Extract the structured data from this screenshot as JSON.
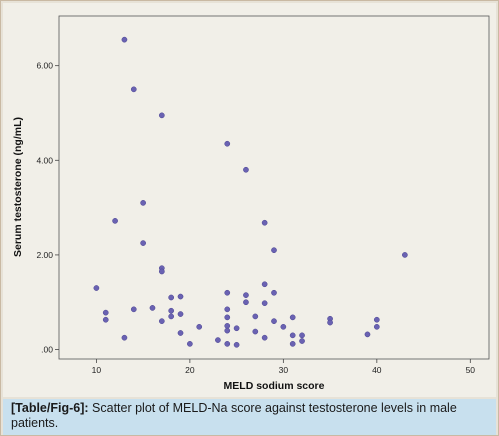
{
  "caption": {
    "tag": "[Table/Fig-6]:",
    "text": "Scatter plot of MELD-Na score against testosterone levels in male patients."
  },
  "chart_data": {
    "type": "scatter",
    "title": "",
    "xlabel": "MELD sodium score",
    "ylabel": "Serum testosterone (ng/mL)",
    "xlim": [
      6,
      52
    ],
    "ylim": [
      -0.2,
      7.05
    ],
    "xticks": [
      10,
      20,
      30,
      40,
      50
    ],
    "yticks": [
      0,
      2,
      4,
      6
    ],
    "xtick_labels": [
      "10",
      "20",
      "30",
      "40",
      "50"
    ],
    "ytick_labels": [
      ".00",
      "2.00",
      "4.00",
      "6.00"
    ],
    "grid": false,
    "point_color": "#6a62b2",
    "plot_background": "#f1efe8",
    "points": [
      [
        13,
        6.55
      ],
      [
        14,
        5.5
      ],
      [
        17,
        4.95
      ],
      [
        24,
        4.35
      ],
      [
        26,
        3.8
      ],
      [
        12,
        2.72
      ],
      [
        15,
        3.1
      ],
      [
        15,
        2.25
      ],
      [
        28,
        2.68
      ],
      [
        29,
        2.1
      ],
      [
        43,
        2.0
      ],
      [
        10,
        1.3
      ],
      [
        17,
        1.72
      ],
      [
        17,
        1.65
      ],
      [
        18,
        1.1
      ],
      [
        19,
        1.12
      ],
      [
        24,
        1.2
      ],
      [
        26,
        1.15
      ],
      [
        26,
        1.0
      ],
      [
        28,
        1.38
      ],
      [
        28,
        0.98
      ],
      [
        29,
        1.2
      ],
      [
        11,
        0.78
      ],
      [
        11,
        0.63
      ],
      [
        14,
        0.85
      ],
      [
        16,
        0.88
      ],
      [
        17,
        0.6
      ],
      [
        18,
        0.82
      ],
      [
        18,
        0.7
      ],
      [
        19,
        0.75
      ],
      [
        19,
        0.35
      ],
      [
        21,
        0.48
      ],
      [
        24,
        0.85
      ],
      [
        24,
        0.68
      ],
      [
        24,
        0.5
      ],
      [
        24,
        0.4
      ],
      [
        25,
        0.45
      ],
      [
        27,
        0.7
      ],
      [
        29,
        0.6
      ],
      [
        30,
        0.48
      ],
      [
        31,
        0.68
      ],
      [
        31,
        0.3
      ],
      [
        32,
        0.3
      ],
      [
        35,
        0.65
      ],
      [
        35,
        0.57
      ],
      [
        40,
        0.63
      ],
      [
        40,
        0.48
      ],
      [
        39,
        0.32
      ],
      [
        13,
        0.25
      ],
      [
        20,
        0.12
      ],
      [
        23,
        0.2
      ],
      [
        24,
        0.12
      ],
      [
        25,
        0.1
      ],
      [
        27,
        0.38
      ],
      [
        28,
        0.25
      ],
      [
        31,
        0.12
      ],
      [
        32,
        0.18
      ]
    ]
  }
}
